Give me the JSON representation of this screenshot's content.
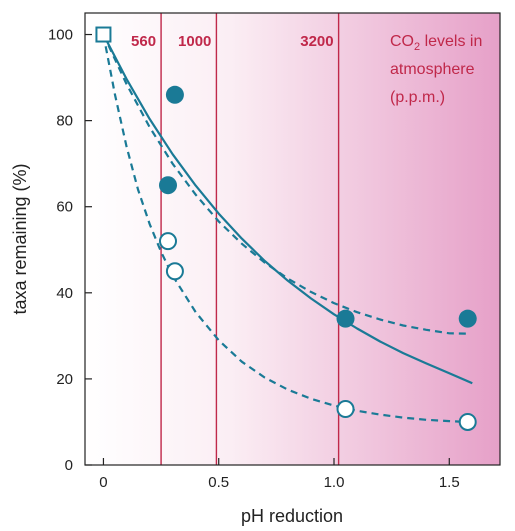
{
  "chart_data": {
    "type": "scatter",
    "xlabel": "pH reduction",
    "ylabel": "taxa remaining (%)",
    "xlim": [
      -0.08,
      1.72
    ],
    "ylim": [
      0,
      105
    ],
    "xticks": [
      0,
      0.5,
      1.0,
      1.5
    ],
    "xtick_labels": [
      "0",
      "0.5",
      "1.0",
      "1.5"
    ],
    "yticks": [
      0,
      20,
      40,
      60,
      80,
      100
    ],
    "ytick_labels": [
      "0",
      "20",
      "40",
      "60",
      "80",
      "100"
    ],
    "grid": false,
    "background": "gradient white to pink, increasing with x",
    "vlines": [
      {
        "x": 0.25,
        "label": "560"
      },
      {
        "x": 0.49,
        "label": "1000"
      },
      {
        "x": 1.02,
        "label": "3200"
      }
    ],
    "annotation": {
      "parts": [
        "CO",
        "2",
        " levels in"
      ],
      "line2": "atmosphere",
      "line3": "(p.p.m.)"
    },
    "colors": {
      "series": "#1a7a96",
      "lines": "#c0284a",
      "annotation": "#c0284a",
      "bg_end": "#e6a0c8"
    },
    "points": {
      "reference": [
        {
          "x": 0.0,
          "y": 100
        }
      ],
      "filled": [
        {
          "x": 0.31,
          "y": 86
        },
        {
          "x": 0.28,
          "y": 65
        },
        {
          "x": 1.05,
          "y": 34
        },
        {
          "x": 1.58,
          "y": 34
        }
      ],
      "open": [
        {
          "x": 0.28,
          "y": 52
        },
        {
          "x": 0.31,
          "y": 45
        },
        {
          "x": 1.05,
          "y": 13
        },
        {
          "x": 1.58,
          "y": 10
        }
      ]
    },
    "curves": [
      {
        "style": "solid",
        "x": [
          0,
          0.1,
          0.2,
          0.3,
          0.4,
          0.5,
          0.6,
          0.7,
          0.8,
          0.9,
          1.0,
          1.1,
          1.2,
          1.3,
          1.4,
          1.5,
          1.6
        ],
        "y": [
          100,
          89.7,
          80.4,
          72.2,
          64.9,
          58.4,
          52.6,
          47.4,
          42.8,
          38.7,
          35.0,
          31.7,
          28.7,
          26.0,
          23.6,
          21.3,
          19.0
        ]
      },
      {
        "style": "dashed",
        "x": [
          0,
          0.1,
          0.2,
          0.3,
          0.4,
          0.5,
          0.6,
          0.7,
          0.8,
          0.9,
          1.0,
          1.1,
          1.2,
          1.3,
          1.4,
          1.5,
          1.58
        ],
        "y": [
          100,
          88.5,
          78.5,
          70.0,
          62.8,
          56.6,
          51.4,
          47.0,
          43.3,
          40.2,
          37.6,
          35.5,
          33.8,
          32.4,
          31.4,
          30.6,
          30.5
        ]
      },
      {
        "style": "dashed",
        "x": [
          0,
          0.05,
          0.1,
          0.15,
          0.2,
          0.25,
          0.3,
          0.4,
          0.5,
          0.6,
          0.7,
          0.8,
          0.9,
          1.0,
          1.1,
          1.2,
          1.3,
          1.4,
          1.5,
          1.58
        ],
        "y": [
          100,
          86.0,
          74.0,
          64.0,
          56.0,
          49.5,
          44.0,
          35.5,
          29.0,
          24.0,
          20.3,
          17.5,
          15.4,
          13.8,
          12.6,
          11.7,
          11.0,
          10.5,
          10.2,
          10.0
        ]
      }
    ]
  }
}
